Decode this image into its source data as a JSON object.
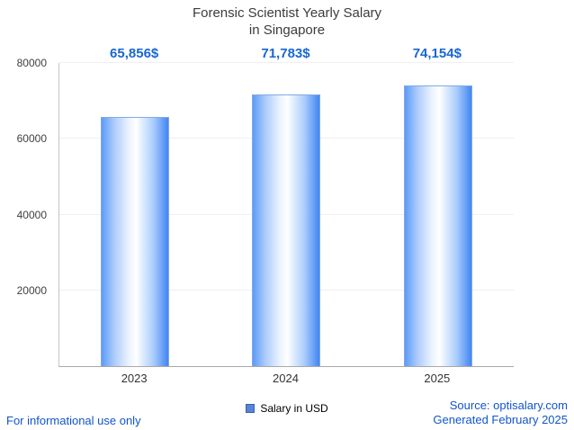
{
  "chart_data": {
    "type": "bar",
    "title": "Forensic Scientist Yearly Salary in Singapore",
    "title_lines": [
      "Forensic Scientist Yearly Salary",
      "in Singapore"
    ],
    "categories": [
      "2023",
      "2024",
      "2025"
    ],
    "values": [
      65856,
      71783,
      74154
    ],
    "value_labels": [
      "65,856$",
      "71,783$",
      "74,154$"
    ],
    "series": [
      {
        "name": "Salary in USD",
        "values": [
          65856,
          71783,
          74154
        ]
      }
    ],
    "legend": {
      "label": "Salary in USD",
      "position": "bottom",
      "marker_color": "#5585d8"
    },
    "xlabel": "",
    "ylabel": "",
    "ylim": [
      0,
      80000
    ],
    "yticks": [
      20000,
      40000,
      60000,
      80000
    ],
    "grid": true
  },
  "footer": {
    "left_note": "For informational use only",
    "source": "Source: optisalary.com",
    "generated": "Generated February 2025"
  },
  "colors": {
    "value_label": "#1967d2",
    "footer_link": "#1155cc",
    "bar_edge_left": "#5b9bf8",
    "bar_edge_right": "#4285f4",
    "axis": "#a8a8a8",
    "title_text": "#3c3c3c"
  }
}
